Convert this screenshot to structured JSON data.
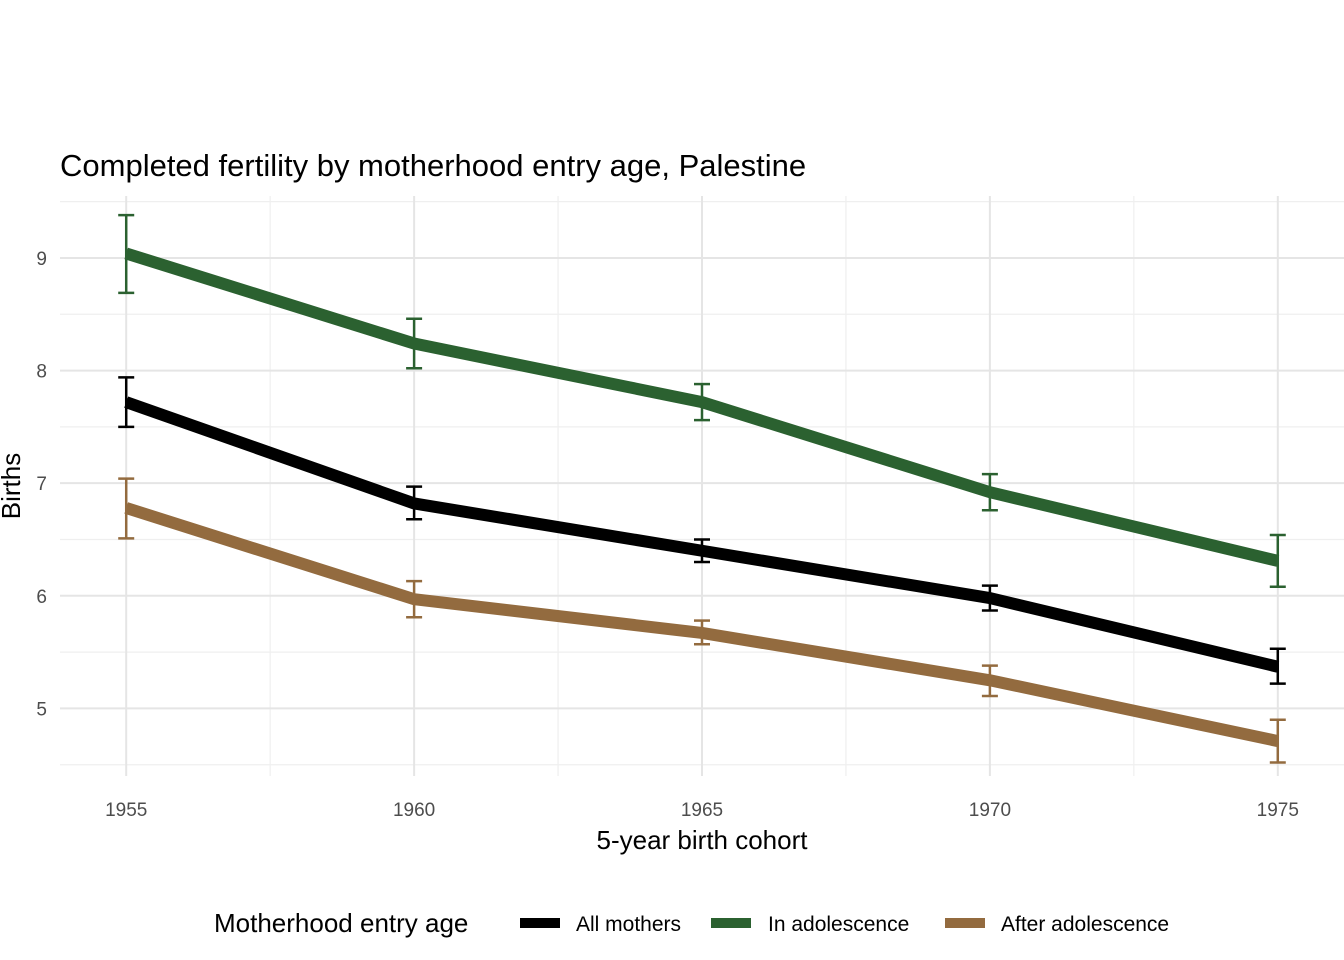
{
  "chart_data": {
    "type": "line",
    "title": "Completed fertility by motherhood entry age,  Palestine",
    "xlabel": "5-year birth cohort",
    "ylabel": "Births",
    "x": [
      1955,
      1960,
      1965,
      1970,
      1975
    ],
    "xlim": [
      1953.85,
      1976.15
    ],
    "ylim": [
      4.4,
      9.55
    ],
    "xticks": [
      1955,
      1960,
      1965,
      1970,
      1975
    ],
    "yticks": [
      5,
      6,
      7,
      8,
      9
    ],
    "grid": true,
    "legend_position": "bottom",
    "legend_title": "Motherhood entry age",
    "series": [
      {
        "name": "All mothers",
        "color": "#000000",
        "values": [
          7.72,
          6.82,
          6.4,
          5.98,
          5.37
        ],
        "lower": [
          7.5,
          6.68,
          6.3,
          5.87,
          5.22
        ],
        "upper": [
          7.94,
          6.97,
          6.5,
          6.09,
          5.53
        ]
      },
      {
        "name": "In adolescence",
        "color": "#2b6130",
        "values": [
          9.04,
          8.24,
          7.72,
          6.92,
          6.31
        ],
        "lower": [
          8.69,
          8.02,
          7.56,
          6.76,
          6.08
        ],
        "upper": [
          9.38,
          8.46,
          7.88,
          7.08,
          6.54
        ]
      },
      {
        "name": "After adolescence",
        "color": "#936b3f",
        "values": [
          6.78,
          5.97,
          5.67,
          5.25,
          4.71
        ],
        "lower": [
          6.51,
          5.81,
          5.57,
          5.11,
          4.52
        ],
        "upper": [
          7.04,
          6.13,
          5.78,
          5.38,
          4.9
        ]
      }
    ]
  }
}
